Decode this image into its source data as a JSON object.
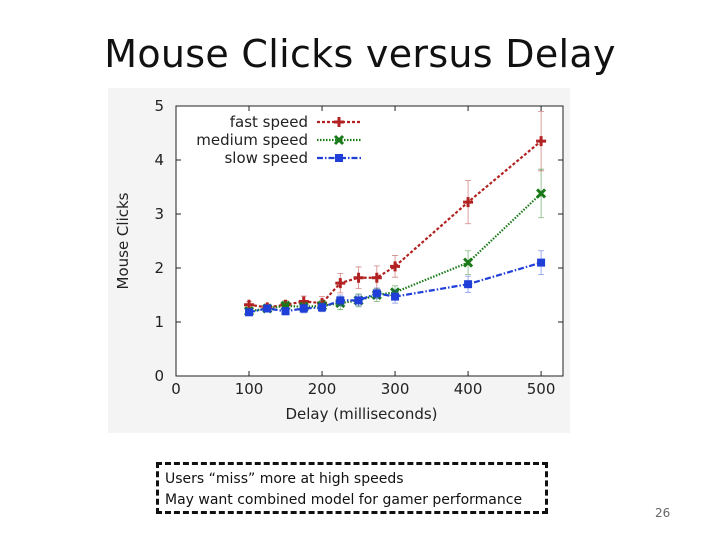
{
  "slide": {
    "title": "Mouse Clicks versus Delay",
    "notes": [
      "Users “miss” more at high speeds",
      "May want combined model for gamer performance"
    ],
    "page_number": "26"
  },
  "chart_data": {
    "type": "line",
    "title": "",
    "xlabel": "Delay (milliseconds)",
    "ylabel": "Mouse Clicks",
    "xlim": [
      0,
      530
    ],
    "ylim": [
      0,
      5
    ],
    "xticks": [
      0,
      100,
      200,
      300,
      400,
      500
    ],
    "yticks": [
      0,
      1,
      2,
      3,
      4,
      5
    ],
    "legend": "top-left",
    "x": [
      100,
      125,
      150,
      175,
      200,
      225,
      250,
      275,
      300,
      400,
      500
    ],
    "series": [
      {
        "name": "fast speed",
        "color": "#b22222",
        "marker": "plus",
        "values": [
          1.32,
          1.27,
          1.32,
          1.38,
          1.35,
          1.72,
          1.82,
          1.82,
          2.03,
          3.22,
          4.35
        ],
        "errors": [
          0.06,
          0.06,
          0.08,
          0.1,
          0.12,
          0.18,
          0.2,
          0.22,
          0.2,
          0.4,
          0.55
        ]
      },
      {
        "name": "medium speed",
        "color": "#1a7a1a",
        "marker": "x",
        "values": [
          1.2,
          1.25,
          1.3,
          1.28,
          1.3,
          1.35,
          1.4,
          1.5,
          1.55,
          2.1,
          3.38
        ],
        "errors": [
          0.06,
          0.06,
          0.08,
          0.08,
          0.1,
          0.12,
          0.12,
          0.12,
          0.12,
          0.22,
          0.45
        ]
      },
      {
        "name": "slow speed",
        "color": "#1f3fd8",
        "marker": "square",
        "values": [
          1.18,
          1.25,
          1.2,
          1.25,
          1.27,
          1.4,
          1.4,
          1.53,
          1.47,
          1.7,
          2.1
        ],
        "errors": [
          0.05,
          0.06,
          0.07,
          0.08,
          0.08,
          0.1,
          0.1,
          0.1,
          0.12,
          0.15,
          0.22
        ]
      }
    ]
  }
}
